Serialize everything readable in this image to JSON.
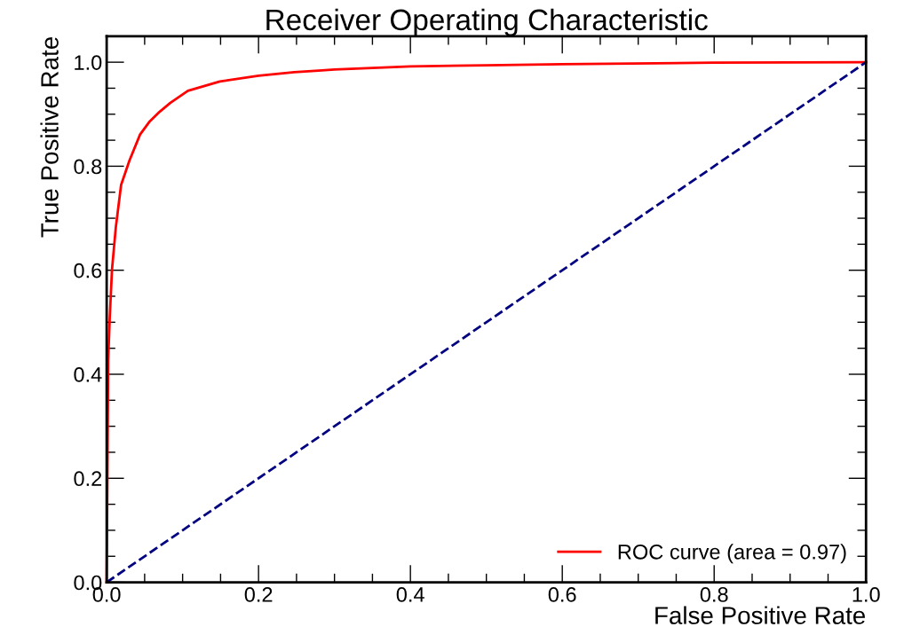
{
  "chart_data": {
    "type": "line",
    "title": "Receiver Operating Characteristic",
    "xlabel": "False Positive Rate",
    "ylabel": "True Positive Rate",
    "xlim": [
      0.0,
      1.0
    ],
    "ylim": [
      0.0,
      1.05
    ],
    "xticks": [
      {
        "value": 0,
        "label": "0.0"
      },
      0.2,
      0.4,
      0.6,
      0.8,
      {
        "value": 1,
        "label": "1.0"
      }
    ],
    "yticks": [
      {
        "value": 0,
        "label": "0.0"
      },
      0.2,
      0.4,
      0.6,
      0.8,
      {
        "value": 1,
        "label": "1.0"
      }
    ],
    "legend": "bottom right",
    "grid": false,
    "series": [
      {
        "name": "ROC curve (area = 0.97)",
        "color": "#ff0000",
        "line_style": "solid",
        "x": [
          0,
          0.002,
          0.004,
          0.007,
          0.012,
          0.019,
          0.03,
          0.044,
          0.056,
          0.07,
          0.084,
          0.107,
          0.149,
          0.2,
          0.247,
          0.279,
          0.3,
          0.4,
          0.5,
          0.6,
          0.8,
          1.0
        ],
        "values": [
          0,
          0.426,
          0.507,
          0.601,
          0.682,
          0.764,
          0.811,
          0.861,
          0.885,
          0.905,
          0.922,
          0.945,
          0.963,
          0.974,
          0.981,
          0.984,
          0.986,
          0.992,
          0.994,
          0.996,
          0.999,
          1.0
        ]
      },
      {
        "color": "#000080",
        "line_style": "dashed",
        "x": [
          0,
          1
        ],
        "values": [
          0,
          1
        ]
      }
    ]
  }
}
